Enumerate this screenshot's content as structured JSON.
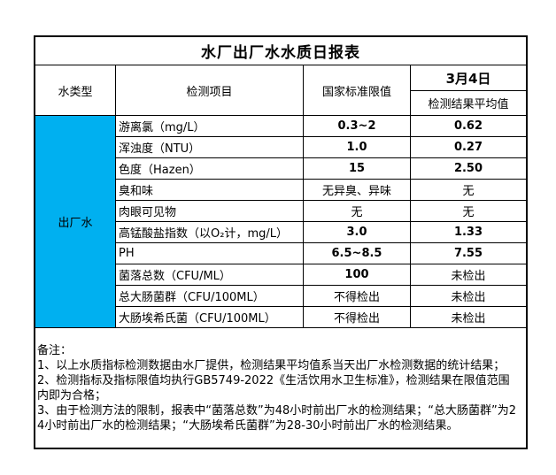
{
  "report_title": "水厂出厂水水质日报表",
  "table": {
    "columns": {
      "water_type": "水类型",
      "item": "检测项目",
      "standard": "国家标准限值",
      "date": "3月4日",
      "result_avg": "检测结果平均值"
    },
    "water_type_value": "出厂水",
    "rows": [
      {
        "item": "游离氯（mg/L）",
        "standard": "0.3~2",
        "result": "0.62"
      },
      {
        "item": "浑浊度（NTU）",
        "standard": "1.0",
        "result": "0.27"
      },
      {
        "item": "色度（Hazen）",
        "standard": "15",
        "result": "2.50"
      },
      {
        "item": "臭和味",
        "standard": "无异臭、异味",
        "result": "无"
      },
      {
        "item": "肉眼可见物",
        "standard": "无",
        "result": "无"
      },
      {
        "item": "高锰酸盐指数（以O₂计，mg/L）",
        "standard": "3.0",
        "result": "1.33"
      },
      {
        "item": "PH",
        "standard": "6.5~8.5",
        "result": "7.55"
      },
      {
        "item": "菌落总数（CFU/ML）",
        "standard": "100",
        "result": "未检出"
      },
      {
        "item": "总大肠菌群（CFU/100ML）",
        "standard": "不得检出",
        "result": "未检出"
      },
      {
        "item": "大肠埃希氏菌（CFU/100ML）",
        "standard": "不得检出",
        "result": "未检出"
      }
    ]
  },
  "notes": {
    "label": "备注：",
    "items": [
      "1、以上水质指标检测数据由水厂提供，检测结果平均值系当天出厂水检测数据的统计结果；",
      "2、检测指标及指标限值均执行GB5749-2022《生活饮用水卫生标准》，检测结果在限值范围内即为合格；",
      "3、由于检测方法的限制，报表中“菌落总数”为48小时前出厂水的检测结果；“总大肠菌群”为24小时前出厂水的检测结果；“大肠埃希氏菌群”为28-30小时前出厂水的检测结果。"
    ]
  },
  "colors": {
    "highlight": "#00B0F0",
    "border": "#000000",
    "background": "#FFFFFF"
  }
}
